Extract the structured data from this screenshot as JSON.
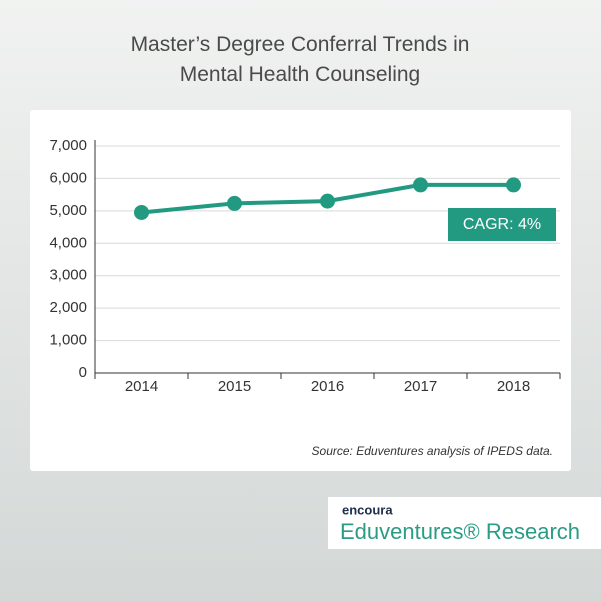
{
  "chart_data": {
    "type": "line",
    "title": "Master’s Degree Conferral Trends in Mental Health Counseling",
    "categories": [
      "2014",
      "2015",
      "2016",
      "2017",
      "2018"
    ],
    "values": [
      4950,
      5230,
      5300,
      5800,
      5800
    ],
    "color": "#229a82",
    "ylim": [
      0,
      7000
    ],
    "yticks": [
      0,
      {
        "value": 1000,
        "label": "1,000"
      },
      {
        "value": 2000,
        "label": "2,000"
      },
      {
        "value": 3000,
        "label": "3,000"
      },
      {
        "value": 4000,
        "label": "4,000"
      },
      {
        "value": 5000,
        "label": "5,000"
      },
      {
        "value": 6000,
        "label": "6,000"
      },
      {
        "value": 7000,
        "label": "7,000"
      }
    ],
    "grid": true,
    "annotation": "CAGR: 4%",
    "source": "Source: Eduventures analysis of IPEDS data."
  },
  "logo": {
    "company": "encoura",
    "product": "Eduventures® Research"
  }
}
